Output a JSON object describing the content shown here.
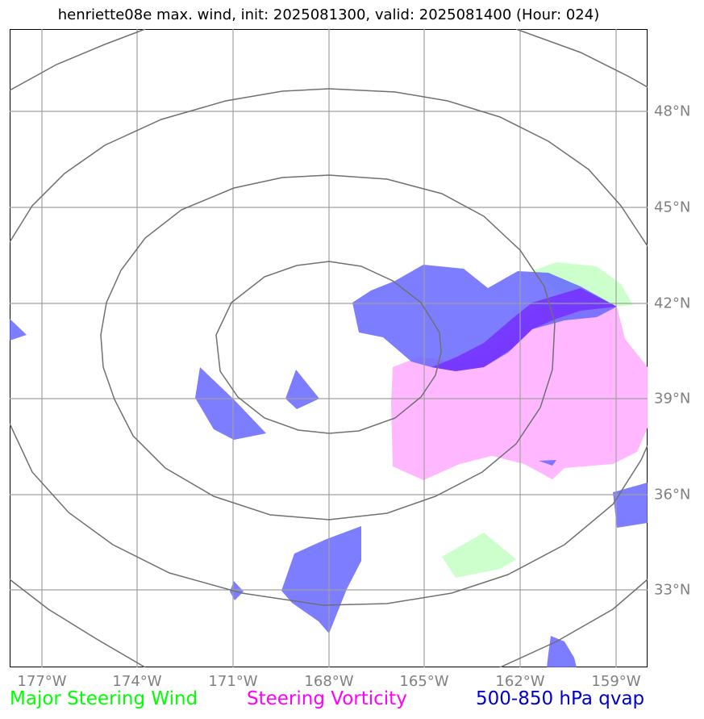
{
  "title": "henriette08e max. wind, init: 2025081300, valid: 2025081400 (Hour: 024)",
  "map": {
    "latitude_labels": [
      "48°N",
      "45°N",
      "42°N",
      "39°N",
      "36°N",
      "33°N"
    ],
    "longitude_labels": [
      "177°W",
      "174°W",
      "171°W",
      "168°W",
      "165°W",
      "162°W",
      "159°W"
    ],
    "gridline_color": "#a0a0a0",
    "contour_color": "#707070"
  },
  "legend": [
    {
      "label": "Major Steering Wind",
      "color": "#00ff00"
    },
    {
      "label": "Steering Vorticity",
      "color": "#ff00ff"
    },
    {
      "label": "500-850 hPa qvap",
      "color": "#0000cc"
    }
  ],
  "fills": {
    "steering_wind": "#ccffcc",
    "steering_vorticity": "#ffb8ff",
    "qvap": "#6666ff"
  }
}
